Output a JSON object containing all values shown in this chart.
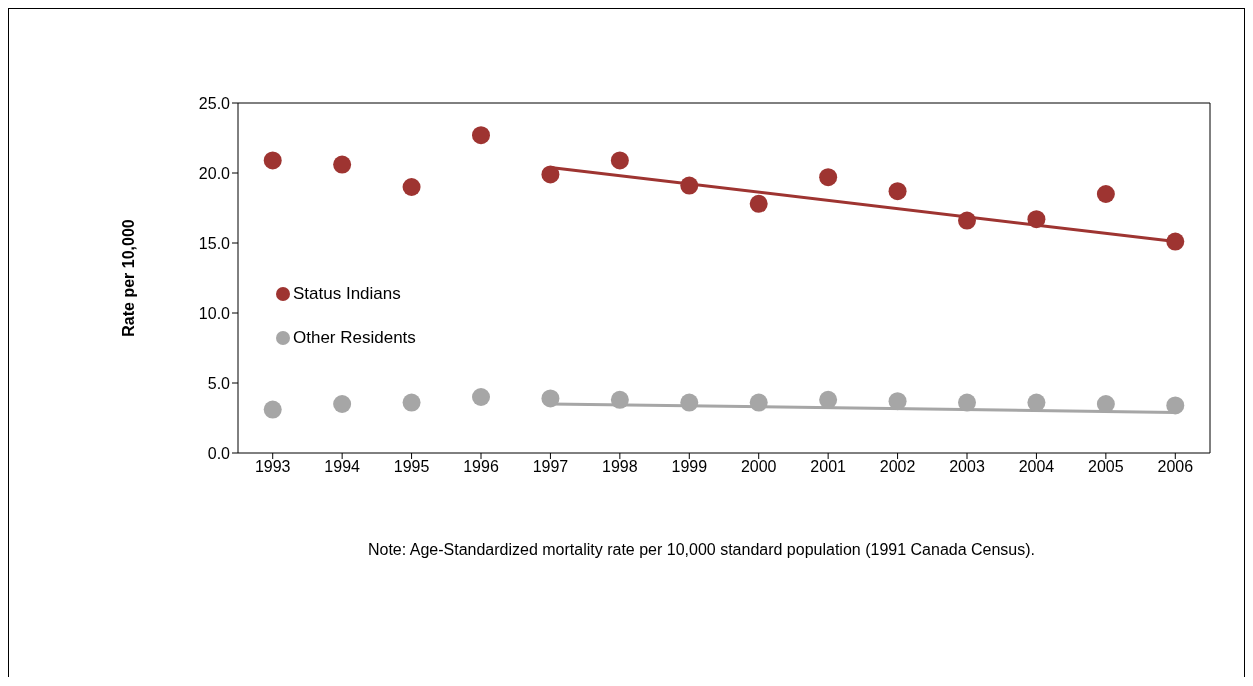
{
  "chart_data": {
    "type": "scatter",
    "ylabel": "Rate per 10,000",
    "categories": [
      "1993",
      "1994",
      "1995",
      "1996",
      "1997",
      "1998",
      "1999",
      "2000",
      "2001",
      "2002",
      "2003",
      "2004",
      "2005",
      "2006"
    ],
    "series": [
      {
        "name": "Status Indians",
        "color": "#9e3431",
        "values": [
          20.9,
          20.6,
          19.0,
          22.7,
          19.9,
          20.9,
          19.1,
          17.8,
          19.7,
          18.7,
          16.6,
          16.7,
          18.5,
          15.1
        ]
      },
      {
        "name": "Other Residents",
        "color": "#a6a6a6",
        "values": [
          3.1,
          3.5,
          3.6,
          4.0,
          3.9,
          3.8,
          3.6,
          3.6,
          3.8,
          3.7,
          3.6,
          3.6,
          3.5,
          3.4
        ]
      },
      {
        "type": "line",
        "marker": "none",
        "color": "#9e3431",
        "values": [
          null,
          null,
          null,
          null,
          20.4,
          null,
          null,
          null,
          null,
          null,
          null,
          null,
          null,
          15.1
        ]
      },
      {
        "type": "line",
        "marker": "none",
        "color": "#a6a6a6",
        "values": [
          null,
          null,
          null,
          null,
          3.5,
          null,
          null,
          null,
          null,
          null,
          null,
          null,
          null,
          2.9
        ]
      }
    ],
    "ylim": [
      0,
      25
    ],
    "yticks": [
      {
        "value": 0,
        "label": "0.0"
      },
      {
        "value": 5,
        "label": "5.0"
      },
      {
        "value": 10,
        "label": "10.0"
      },
      {
        "value": 15,
        "label": "15.0"
      },
      {
        "value": 20,
        "label": "20.0"
      },
      {
        "value": 25,
        "label": "25.0"
      }
    ],
    "grid": false,
    "legend": "left",
    "marker": "circle",
    "annotations": [
      "Note: Age-Standardized mortality rate per 10,000 standard population (1991 Canada Census)."
    ]
  }
}
